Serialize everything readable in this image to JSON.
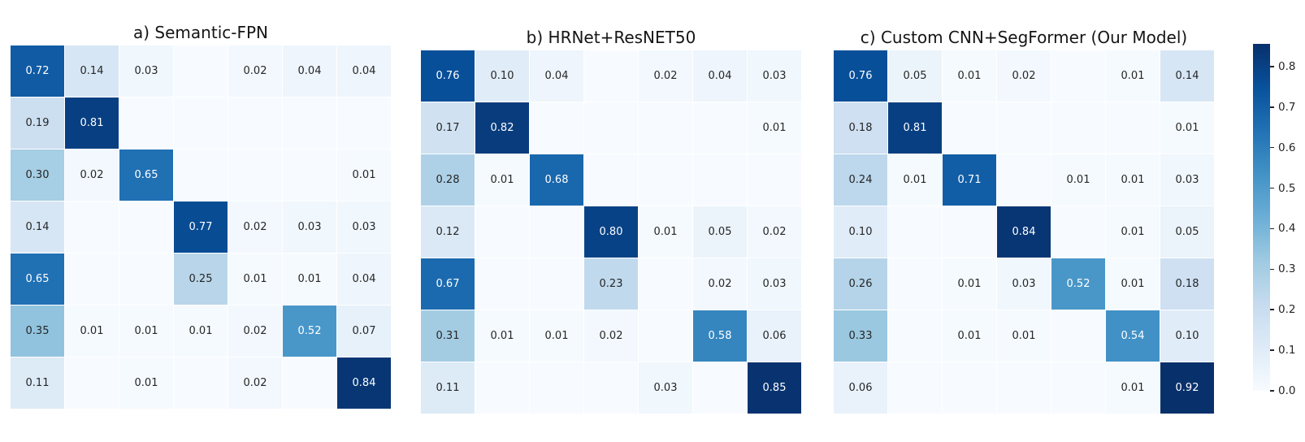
{
  "figure": {
    "background": "#ffffff",
    "colormap": {
      "name": "Blues",
      "stops": [
        "#f7fbff",
        "#deebf7",
        "#c6dbef",
        "#9ecae1",
        "#6baed6",
        "#4292c6",
        "#2171b5",
        "#08519c",
        "#08306b"
      ],
      "vmin": 0.0,
      "vmax": 0.86
    },
    "annotation": {
      "decimals": 2,
      "hide_zeros": true,
      "dark_text": "#262626",
      "light_text": "#ffffff"
    }
  },
  "chart_data": [
    {
      "type": "heatmap",
      "title": "a) Semantic-FPN",
      "rows": 7,
      "cols": 7,
      "grid": false,
      "values": [
        [
          0.72,
          0.14,
          0.03,
          0,
          0.02,
          0.04,
          0.04
        ],
        [
          0.19,
          0.81,
          0,
          0,
          0,
          0,
          0
        ],
        [
          0.3,
          0.02,
          0.65,
          0,
          0,
          0,
          0.01
        ],
        [
          0.14,
          0,
          0,
          0.77,
          0.02,
          0.03,
          0.03
        ],
        [
          0.65,
          0,
          0,
          0.25,
          0.01,
          0.01,
          0.04
        ],
        [
          0.35,
          0.01,
          0.01,
          0.01,
          0.02,
          0.52,
          0.07
        ],
        [
          0.11,
          0,
          0.01,
          0,
          0.02,
          0,
          0.84
        ]
      ]
    },
    {
      "type": "heatmap",
      "title": "b) HRNet+ResNET50",
      "rows": 7,
      "cols": 7,
      "grid": false,
      "values": [
        [
          0.76,
          0.1,
          0.04,
          0,
          0.02,
          0.04,
          0.03
        ],
        [
          0.17,
          0.82,
          0,
          0,
          0,
          0,
          0.01
        ],
        [
          0.28,
          0.01,
          0.68,
          0,
          0,
          0,
          0
        ],
        [
          0.12,
          0,
          0,
          0.8,
          0.01,
          0.05,
          0.02
        ],
        [
          0.67,
          0,
          0,
          0.23,
          0,
          0.02,
          0.03
        ],
        [
          0.31,
          0.01,
          0.01,
          0.02,
          0,
          0.58,
          0.06
        ],
        [
          0.11,
          0,
          0,
          0,
          0.03,
          0,
          0.85
        ]
      ]
    },
    {
      "type": "heatmap",
      "title": "c) Custom CNN+SegFormer (Our Model)",
      "rows": 7,
      "cols": 7,
      "grid": false,
      "values": [
        [
          0.76,
          0.05,
          0.01,
          0.02,
          0,
          0.01,
          0.14
        ],
        [
          0.18,
          0.81,
          0,
          0,
          0,
          0,
          0.01
        ],
        [
          0.24,
          0.01,
          0.71,
          0,
          0.01,
          0.01,
          0.03
        ],
        [
          0.1,
          0,
          0,
          0.84,
          0,
          0.01,
          0.05
        ],
        [
          0.26,
          0,
          0.01,
          0.03,
          0.52,
          0.01,
          0.18
        ],
        [
          0.33,
          0,
          0.01,
          0.01,
          0,
          0.54,
          0.1
        ],
        [
          0.06,
          0,
          0,
          0,
          0,
          0.01,
          0.92
        ]
      ]
    }
  ],
  "colorbar": {
    "position": "right",
    "ticks": [
      0.0,
      0.1,
      0.2,
      0.3,
      0.4,
      0.5,
      0.6,
      0.7,
      0.8
    ],
    "scale_max": 0.856,
    "label_color": "#262626"
  }
}
